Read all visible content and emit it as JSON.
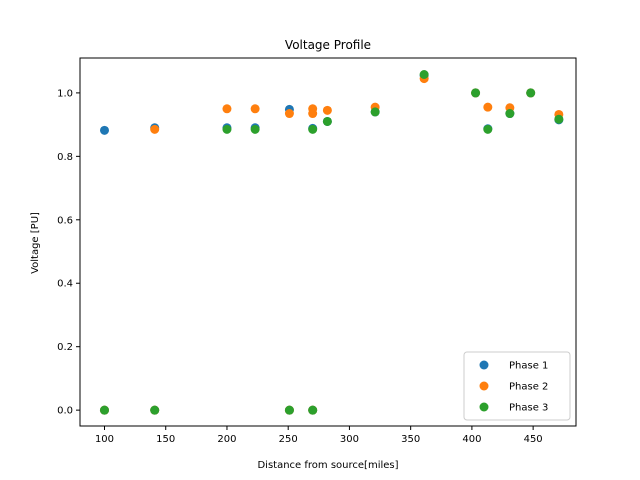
{
  "chart_data": {
    "type": "scatter",
    "title": "Voltage Profile",
    "xlabel": "Distance from source[miles]",
    "ylabel": "Voltage [PU]",
    "xlim": [
      80,
      485
    ],
    "ylim": [
      -0.05,
      1.11
    ],
    "xticks": [
      100,
      150,
      200,
      250,
      300,
      350,
      400,
      450
    ],
    "yticks": [
      "0.0",
      "0.2",
      "0.4",
      "0.6",
      "0.8",
      "1.0"
    ],
    "grid": false,
    "legend": "bottom-right",
    "series": [
      {
        "name": "Phase 1",
        "color": "#1f77b4",
        "points": [
          [
            100,
            0.882
          ],
          [
            100,
            0.0
          ],
          [
            141,
            0.89
          ],
          [
            141,
            0.0
          ],
          [
            200,
            0.89
          ],
          [
            223,
            0.89
          ],
          [
            251,
            0.948
          ],
          [
            251,
            0.0
          ],
          [
            270,
            0.888
          ],
          [
            270,
            0.0
          ],
          [
            282,
            0.91
          ],
          [
            321,
            0.94
          ],
          [
            361,
            1.055
          ],
          [
            403,
            1.0
          ],
          [
            413,
            0.887
          ],
          [
            431,
            0.935
          ],
          [
            448,
            1.0
          ],
          [
            471,
            0.915
          ]
        ]
      },
      {
        "name": "Phase 2",
        "color": "#ff7f0e",
        "points": [
          [
            100,
            0.0
          ],
          [
            141,
            0.885
          ],
          [
            141,
            0.0
          ],
          [
            200,
            0.95
          ],
          [
            223,
            0.95
          ],
          [
            251,
            0.935
          ],
          [
            251,
            0.0
          ],
          [
            270,
            0.95
          ],
          [
            270,
            0.935
          ],
          [
            270,
            0.0
          ],
          [
            282,
            0.945
          ],
          [
            321,
            0.955
          ],
          [
            361,
            1.045
          ],
          [
            403,
            1.0
          ],
          [
            413,
            0.955
          ],
          [
            431,
            0.953
          ],
          [
            448,
            1.0
          ],
          [
            471,
            0.932
          ]
        ]
      },
      {
        "name": "Phase 3",
        "color": "#2ca02c",
        "points": [
          [
            100,
            0.0
          ],
          [
            141,
            0.0
          ],
          [
            200,
            0.885
          ],
          [
            223,
            0.885
          ],
          [
            251,
            0.0
          ],
          [
            270,
            0.885
          ],
          [
            270,
            0.0
          ],
          [
            282,
            0.91
          ],
          [
            321,
            0.94
          ],
          [
            361,
            1.058
          ],
          [
            403,
            1.0
          ],
          [
            413,
            0.885
          ],
          [
            431,
            0.935
          ],
          [
            448,
            1.0
          ],
          [
            471,
            0.917
          ]
        ]
      }
    ]
  }
}
